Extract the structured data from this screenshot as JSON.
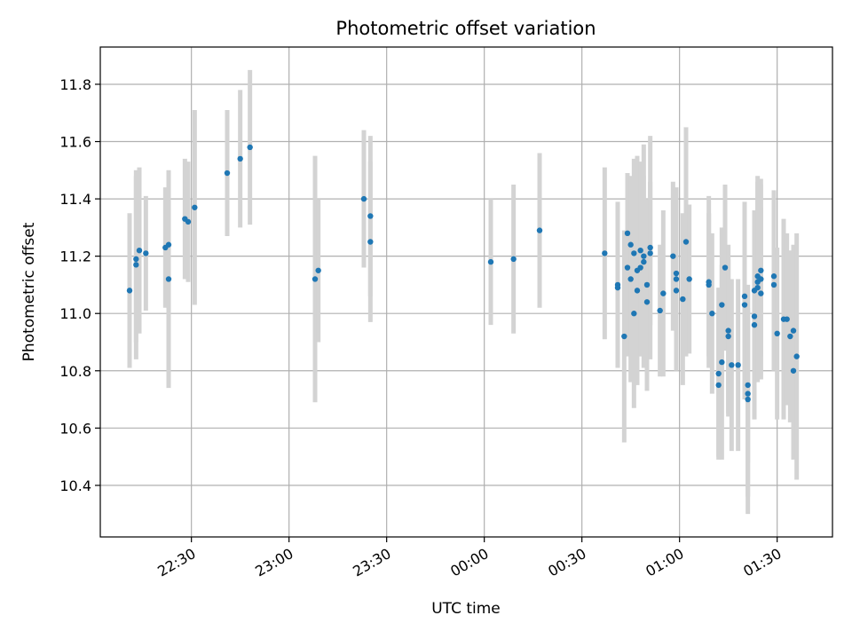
{
  "chart_data": {
    "type": "scatter",
    "title": "Photometric offset variation",
    "xlabel": "UTC time",
    "ylabel": "Photometric offset",
    "x_axis": "time",
    "grid": true,
    "xlim": [
      "22:02",
      "01:47"
    ],
    "ylim": [
      10.22,
      11.93
    ],
    "xticks": [
      "22:30",
      "23:00",
      "23:30",
      "00:00",
      "00:30",
      "01:00",
      "01:30"
    ],
    "yticks": [
      "10.4",
      "10.6",
      "10.8",
      "11.0",
      "11.2",
      "11.4",
      "11.6",
      "11.8"
    ],
    "colors": {
      "points": "#1f77b4",
      "error_bars": "#d3d3d3",
      "grid": "#b0b0b0"
    },
    "series": [
      {
        "points": [
          {
            "t": "22:11",
            "y": 11.08,
            "err": 0.27
          },
          {
            "t": "22:13",
            "y": 11.19,
            "err": 0.29
          },
          {
            "t": "22:13",
            "y": 11.17,
            "err": 0.33
          },
          {
            "t": "22:14",
            "y": 11.22,
            "err": 0.29
          },
          {
            "t": "22:16",
            "y": 11.21,
            "err": 0.2
          },
          {
            "t": "22:22",
            "y": 11.23,
            "err": 0.21
          },
          {
            "t": "22:23",
            "y": 11.24,
            "err": 0.25
          },
          {
            "t": "22:23",
            "y": 11.12,
            "err": 0.38
          },
          {
            "t": "22:28",
            "y": 11.33,
            "err": 0.21
          },
          {
            "t": "22:29",
            "y": 11.32,
            "err": 0.21
          },
          {
            "t": "22:31",
            "y": 11.37,
            "err": 0.34
          },
          {
            "t": "22:41",
            "y": 11.49,
            "err": 0.22
          },
          {
            "t": "22:45",
            "y": 11.54,
            "err": 0.24
          },
          {
            "t": "22:48",
            "y": 11.58,
            "err": 0.27
          },
          {
            "t": "23:08",
            "y": 11.12,
            "err": 0.43
          },
          {
            "t": "23:09",
            "y": 11.15,
            "err": 0.25
          },
          {
            "t": "23:23",
            "y": 11.4,
            "err": 0.24
          },
          {
            "t": "23:25",
            "y": 11.25,
            "err": 0.28
          },
          {
            "t": "23:25",
            "y": 11.34,
            "err": 0.28
          },
          {
            "t": "00:02",
            "y": 11.18,
            "err": 0.22
          },
          {
            "t": "00:09",
            "y": 11.19,
            "err": 0.26
          },
          {
            "t": "00:17",
            "y": 11.29,
            "err": 0.27
          },
          {
            "t": "00:37",
            "y": 11.21,
            "err": 0.3
          },
          {
            "t": "00:41",
            "y": 11.1,
            "err": 0.29
          },
          {
            "t": "00:41",
            "y": 11.09,
            "err": 0.26
          },
          {
            "t": "00:43",
            "y": 10.92,
            "err": 0.37
          },
          {
            "t": "00:44",
            "y": 11.28,
            "err": 0.21
          },
          {
            "t": "00:44",
            "y": 11.16,
            "err": 0.31
          },
          {
            "t": "00:45",
            "y": 11.24,
            "err": 0.23
          },
          {
            "t": "00:45",
            "y": 11.12,
            "err": 0.36
          },
          {
            "t": "00:46",
            "y": 11.0,
            "err": 0.33
          },
          {
            "t": "00:46",
            "y": 11.21,
            "err": 0.33
          },
          {
            "t": "00:47",
            "y": 11.08,
            "err": 0.3
          },
          {
            "t": "00:47",
            "y": 11.15,
            "err": 0.4
          },
          {
            "t": "00:48",
            "y": 11.22,
            "err": 0.31
          },
          {
            "t": "00:48",
            "y": 11.16,
            "err": 0.31
          },
          {
            "t": "00:49",
            "y": 11.2,
            "err": 0.39
          },
          {
            "t": "00:49",
            "y": 11.18,
            "err": 0.3
          },
          {
            "t": "00:50",
            "y": 11.04,
            "err": 0.31
          },
          {
            "t": "00:50",
            "y": 11.1,
            "err": 0.3
          },
          {
            "t": "00:51",
            "y": 11.23,
            "err": 0.39
          },
          {
            "t": "00:51",
            "y": 11.21,
            "err": 0.25
          },
          {
            "t": "00:54",
            "y": 11.01,
            "err": 0.23
          },
          {
            "t": "00:55",
            "y": 11.07,
            "err": 0.29
          },
          {
            "t": "00:58",
            "y": 11.2,
            "err": 0.26
          },
          {
            "t": "00:59",
            "y": 11.14,
            "err": 0.25
          },
          {
            "t": "00:59",
            "y": 11.12,
            "err": 0.32
          },
          {
            "t": "00:59",
            "y": 11.08,
            "err": 0.25
          },
          {
            "t": "01:01",
            "y": 11.05,
            "err": 0.3
          },
          {
            "t": "01:02",
            "y": 11.25,
            "err": 0.4
          },
          {
            "t": "01:03",
            "y": 11.12,
            "err": 0.26
          },
          {
            "t": "01:09",
            "y": 11.11,
            "err": 0.3
          },
          {
            "t": "01:09",
            "y": 11.1,
            "err": 0.25
          },
          {
            "t": "01:10",
            "y": 11.0,
            "err": 0.28
          },
          {
            "t": "01:12",
            "y": 10.79,
            "err": 0.3
          },
          {
            "t": "01:12",
            "y": 10.75,
            "err": 0.25
          },
          {
            "t": "01:13",
            "y": 10.83,
            "err": 0.34
          },
          {
            "t": "01:13",
            "y": 11.03,
            "err": 0.27
          },
          {
            "t": "01:14",
            "y": 11.16,
            "err": 0.29
          },
          {
            "t": "01:15",
            "y": 10.94,
            "err": 0.3
          },
          {
            "t": "01:15",
            "y": 10.92,
            "err": 0.27
          },
          {
            "t": "01:16",
            "y": 10.82,
            "err": 0.3
          },
          {
            "t": "01:18",
            "y": 10.82,
            "err": 0.3
          },
          {
            "t": "01:20",
            "y": 11.03,
            "err": 0.33
          },
          {
            "t": "01:20",
            "y": 11.06,
            "err": 0.33
          },
          {
            "t": "01:21",
            "y": 10.7,
            "err": 0.4
          },
          {
            "t": "01:21",
            "y": 10.72,
            "err": 0.36
          },
          {
            "t": "01:21",
            "y": 10.75,
            "err": 0.27
          },
          {
            "t": "01:23",
            "y": 10.96,
            "err": 0.33
          },
          {
            "t": "01:23",
            "y": 10.99,
            "err": 0.3
          },
          {
            "t": "01:23",
            "y": 11.08,
            "err": 0.28
          },
          {
            "t": "01:24",
            "y": 11.09,
            "err": 0.3
          },
          {
            "t": "01:24",
            "y": 11.11,
            "err": 0.35
          },
          {
            "t": "01:24",
            "y": 11.13,
            "err": 0.35
          },
          {
            "t": "01:25",
            "y": 11.15,
            "err": 0.3
          },
          {
            "t": "01:25",
            "y": 11.12,
            "err": 0.35
          },
          {
            "t": "01:25",
            "y": 11.07,
            "err": 0.3
          },
          {
            "t": "01:29",
            "y": 11.1,
            "err": 0.3
          },
          {
            "t": "01:29",
            "y": 11.13,
            "err": 0.3
          },
          {
            "t": "01:30",
            "y": 10.93,
            "err": 0.3
          },
          {
            "t": "01:32",
            "y": 10.98,
            "err": 0.35
          },
          {
            "t": "01:33",
            "y": 10.98,
            "err": 0.3
          },
          {
            "t": "01:34",
            "y": 10.92,
            "err": 0.3
          },
          {
            "t": "01:35",
            "y": 10.8,
            "err": 0.31
          },
          {
            "t": "01:35",
            "y": 10.94,
            "err": 0.3
          },
          {
            "t": "01:36",
            "y": 10.85,
            "err": 0.43
          }
        ]
      }
    ]
  }
}
